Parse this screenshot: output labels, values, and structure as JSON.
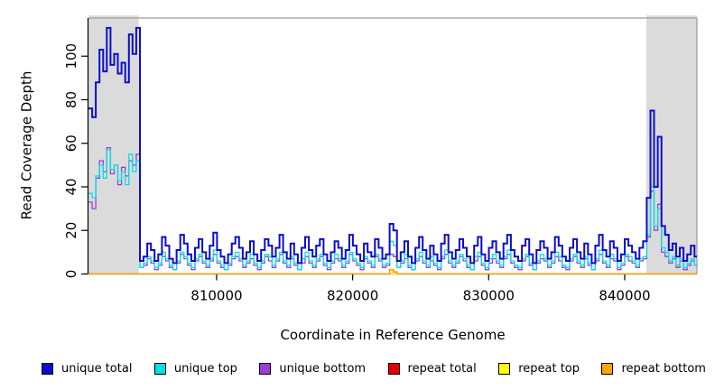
{
  "figure": {
    "kind": "read-coverage-plot"
  },
  "chart_data": {
    "type": "line",
    "title": "",
    "xlabel": "Coordinate in Reference Genome",
    "ylabel": "Read Coverage Depth",
    "xlim": [
      800580,
      845310
    ],
    "ylim": [
      0,
      117.5
    ],
    "x_ticks": [
      810000,
      820000,
      830000,
      840000
    ],
    "y_ticks": [
      0,
      20,
      40,
      60,
      80,
      100
    ],
    "grid": false,
    "legend_position": "bottom",
    "shaded_color": "#DBDBDB",
    "shaded_regions": [
      {
        "from": 800580,
        "to": 804280
      },
      {
        "from": 841590,
        "to": 845310
      }
    ],
    "x_start": 800580,
    "x_step": 270,
    "n_points": 166,
    "series": [
      {
        "name": "repeat total",
        "color": "#E60000",
        "width": 1.2,
        "baseline_value": 0
      },
      {
        "name": "repeat top",
        "color": "#FFFF00",
        "width": 1.2,
        "baseline_value": 0
      },
      {
        "name": "unique bottom",
        "color": "#9B3FD6",
        "width": 1.3,
        "values": [
          33,
          30,
          44,
          52,
          47,
          58,
          46,
          50,
          41,
          49,
          45,
          52,
          50,
          55,
          3,
          4,
          7,
          5,
          2,
          4,
          8,
          6,
          3,
          2,
          5,
          9,
          7,
          4,
          2,
          6,
          8,
          5,
          3,
          6,
          9,
          5,
          3,
          2,
          4,
          7,
          8,
          6,
          3,
          5,
          7,
          4,
          2,
          5,
          8,
          6,
          3,
          6,
          9,
          5,
          3,
          7,
          4,
          2,
          5,
          8,
          5,
          3,
          6,
          8,
          4,
          2,
          5,
          7,
          6,
          3,
          5,
          9,
          6,
          4,
          2,
          7,
          5,
          3,
          8,
          6,
          3,
          4,
          9,
          8,
          3,
          5,
          7,
          3,
          2,
          6,
          8,
          5,
          3,
          6,
          4,
          2,
          7,
          9,
          5,
          3,
          5,
          8,
          6,
          3,
          2,
          6,
          8,
          4,
          2,
          5,
          7,
          5,
          3,
          7,
          9,
          5,
          3,
          2,
          6,
          8,
          4,
          2,
          5,
          7,
          6,
          3,
          5,
          8,
          6,
          3,
          2,
          6,
          8,
          5,
          3,
          7,
          4,
          2,
          6,
          9,
          5,
          3,
          7,
          6,
          2,
          4,
          8,
          6,
          5,
          3,
          6,
          7,
          17,
          38,
          20,
          32,
          10,
          8,
          5,
          7,
          3,
          6,
          2,
          4,
          6,
          4
        ]
      },
      {
        "name": "unique top",
        "color": "#00E2E2",
        "width": 1.3,
        "values": [
          37,
          35,
          45,
          50,
          44,
          57,
          48,
          50,
          43,
          47,
          41,
          55,
          47,
          52,
          3,
          5,
          8,
          6,
          3,
          5,
          10,
          7,
          4,
          2,
          6,
          10,
          8,
          5,
          3,
          7,
          9,
          6,
          4,
          7,
          11,
          6,
          4,
          2,
          5,
          8,
          10,
          7,
          4,
          6,
          9,
          5,
          3,
          6,
          9,
          8,
          4,
          7,
          10,
          6,
          4,
          8,
          5,
          2,
          7,
          10,
          6,
          4,
          7,
          9,
          5,
          3,
          6,
          9,
          7,
          4,
          6,
          10,
          7,
          5,
          3,
          8,
          6,
          4,
          9,
          7,
          4,
          5,
          15,
          13,
          3,
          6,
          9,
          4,
          2,
          7,
          10,
          6,
          4,
          8,
          5,
          3,
          8,
          11,
          6,
          4,
          6,
          9,
          7,
          4,
          2,
          8,
          10,
          5,
          3,
          7,
          9,
          6,
          4,
          8,
          11,
          6,
          4,
          3,
          7,
          9,
          5,
          2,
          6,
          9,
          7,
          4,
          6,
          10,
          8,
          4,
          3,
          7,
          9,
          6,
          4,
          8,
          5,
          2,
          7,
          11,
          6,
          4,
          9,
          7,
          3,
          5,
          9,
          8,
          6,
          4,
          7,
          8,
          18,
          40,
          22,
          30,
          12,
          10,
          6,
          8,
          4,
          7,
          3,
          5,
          7,
          4
        ]
      },
      {
        "name": "unique total",
        "color": "#0C0CCE",
        "width": 2,
        "values": [
          76,
          72,
          88,
          103,
          93,
          113,
          96,
          101,
          92,
          97,
          88,
          110,
          101,
          113,
          6,
          8,
          14,
          11,
          6,
          9,
          17,
          13,
          7,
          5,
          11,
          18,
          14,
          9,
          6,
          12,
          16,
          10,
          7,
          13,
          19,
          11,
          8,
          5,
          9,
          14,
          17,
          12,
          7,
          10,
          15,
          9,
          6,
          11,
          16,
          13,
          8,
          12,
          18,
          10,
          7,
          14,
          9,
          5,
          12,
          17,
          11,
          8,
          13,
          16,
          9,
          6,
          10,
          15,
          12,
          7,
          11,
          18,
          13,
          9,
          6,
          14,
          10,
          8,
          16,
          12,
          7,
          9,
          23,
          20,
          6,
          10,
          15,
          8,
          5,
          12,
          17,
          11,
          7,
          13,
          9,
          6,
          14,
          18,
          10,
          7,
          11,
          16,
          12,
          8,
          5,
          13,
          17,
          9,
          6,
          12,
          15,
          10,
          7,
          14,
          18,
          11,
          8,
          6,
          13,
          16,
          9,
          5,
          11,
          15,
          12,
          7,
          10,
          17,
          13,
          8,
          6,
          12,
          16,
          10,
          7,
          14,
          9,
          5,
          13,
          18,
          11,
          8,
          15,
          12,
          6,
          9,
          16,
          13,
          10,
          7,
          12,
          15,
          35,
          75,
          40,
          63,
          22,
          18,
          11,
          14,
          8,
          12,
          6,
          9,
          13,
          8
        ]
      },
      {
        "name": "repeat bottom",
        "color": "#FFA500",
        "width": 1.8,
        "baseline_value": 0,
        "spikes": [
          {
            "i": 82,
            "v": 2
          },
          {
            "i": 83,
            "v": 1
          }
        ]
      }
    ]
  },
  "legend": {
    "items": [
      {
        "label": "unique total",
        "color": "#0C0CCE"
      },
      {
        "label": "unique top",
        "color": "#00E2E2"
      },
      {
        "label": "unique bottom",
        "color": "#9B3FD6"
      },
      {
        "label": "repeat total",
        "color": "#E60000"
      },
      {
        "label": "repeat top",
        "color": "#FFFF00"
      },
      {
        "label": "repeat bottom",
        "color": "#FFA500"
      }
    ]
  }
}
